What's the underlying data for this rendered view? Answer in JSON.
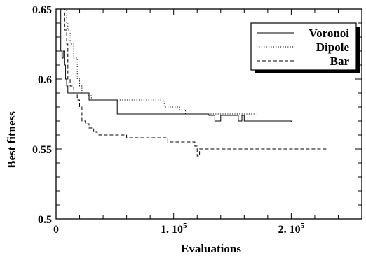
{
  "chart_data": {
    "type": "line",
    "xlabel": "Evaluations",
    "ylabel": "Best fitness",
    "xlim": [
      0,
      260000
    ],
    "ylim": [
      0.5,
      0.65
    ],
    "x_ticks": [
      {
        "value": 0,
        "label": "0"
      },
      {
        "value": 100000,
        "label": "1. 10",
        "exp": "5"
      },
      {
        "value": 200000,
        "label": "2. 10",
        "exp": "5"
      }
    ],
    "y_ticks": [
      {
        "value": 0.5,
        "label": "0.5"
      },
      {
        "value": 0.55,
        "label": "0.55"
      },
      {
        "value": 0.6,
        "label": "0.6"
      },
      {
        "value": 0.65,
        "label": "0.65"
      }
    ],
    "legend": {
      "position": "top-right",
      "boxed": true,
      "shadow": true
    },
    "series": [
      {
        "name": "Voronoi",
        "style": "solid",
        "x": [
          3000,
          4000,
          5000,
          6000,
          7000,
          8000,
          9000,
          10000,
          12000,
          15000,
          20000,
          25000,
          28000,
          30000,
          35000,
          40000,
          45000,
          50000,
          52000,
          55000,
          60000,
          70000,
          80000,
          90000,
          100000,
          110000,
          120000,
          130000,
          135000,
          140000,
          150000,
          155000,
          158000,
          160000,
          170000,
          180000,
          190000,
          200000
        ],
        "y": [
          0.65,
          0.62,
          0.615,
          0.62,
          0.61,
          0.6,
          0.595,
          0.59,
          0.59,
          0.59,
          0.59,
          0.59,
          0.585,
          0.585,
          0.585,
          0.585,
          0.585,
          0.585,
          0.575,
          0.575,
          0.575,
          0.575,
          0.575,
          0.575,
          0.575,
          0.575,
          0.575,
          0.574,
          0.57,
          0.574,
          0.574,
          0.57,
          0.574,
          0.57,
          0.57,
          0.57,
          0.57,
          0.5695
        ]
      },
      {
        "name": "Dipole",
        "style": "dotted",
        "x": [
          8000,
          9000,
          10000,
          12000,
          15000,
          18000,
          20000,
          22000,
          25000,
          27000,
          30000,
          35000,
          40000,
          50000,
          60000,
          70000,
          80000,
          90000,
          92000,
          100000,
          105000,
          110000,
          120000,
          130000,
          140000,
          150000,
          160000,
          165000,
          170000
        ],
        "y": [
          0.65,
          0.64,
          0.635,
          0.625,
          0.615,
          0.6,
          0.595,
          0.59,
          0.59,
          0.588,
          0.585,
          0.585,
          0.585,
          0.585,
          0.585,
          0.585,
          0.585,
          0.585,
          0.58,
          0.58,
          0.578,
          0.575,
          0.575,
          0.575,
          0.575,
          0.575,
          0.575,
          0.575,
          0.575
        ]
      },
      {
        "name": "Bar",
        "style": "dashed",
        "x": [
          5000,
          7000,
          9000,
          10000,
          12000,
          15000,
          18000,
          20000,
          22000,
          25000,
          28000,
          30000,
          32000,
          35000,
          40000,
          45000,
          50000,
          60000,
          70000,
          80000,
          90000,
          95000,
          100000,
          110000,
          118000,
          120000,
          122000,
          125000,
          130000,
          140000,
          150000,
          160000,
          170000,
          180000,
          190000,
          200000,
          210000,
          220000,
          230000
        ],
        "y": [
          0.65,
          0.635,
          0.625,
          0.6,
          0.595,
          0.59,
          0.585,
          0.58,
          0.57,
          0.568,
          0.565,
          0.565,
          0.562,
          0.56,
          0.56,
          0.56,
          0.56,
          0.558,
          0.558,
          0.558,
          0.558,
          0.555,
          0.555,
          0.555,
          0.552,
          0.545,
          0.55,
          0.55,
          0.55,
          0.55,
          0.55,
          0.55,
          0.55,
          0.55,
          0.55,
          0.55,
          0.55,
          0.55,
          0.55
        ]
      }
    ]
  }
}
